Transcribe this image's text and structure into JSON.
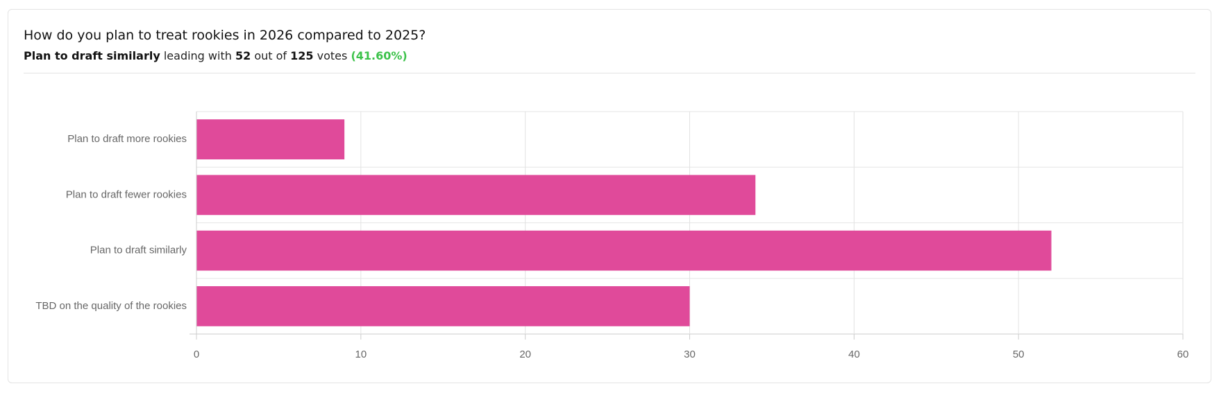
{
  "chart_data": {
    "type": "hbar",
    "title": "How do you plan to treat rookies in 2026 compared to 2025?",
    "summary": {
      "leader": "Plan to draft similarly",
      "leading": "leading with",
      "count": 52,
      "out_of": "out of",
      "total": 125,
      "votes": "votes",
      "percent": "(41.60%)"
    },
    "categories": [
      "Plan to draft more rookies",
      "Plan to draft fewer rookies",
      "Plan to draft similarly",
      "TBD on the quality of the rookies"
    ],
    "values": [
      9,
      34,
      52,
      30
    ],
    "color": "#e04a9a",
    "xlim": [
      0,
      60
    ],
    "xticks": [
      0,
      10,
      20,
      30,
      40,
      50,
      60
    ],
    "grid": true
  }
}
